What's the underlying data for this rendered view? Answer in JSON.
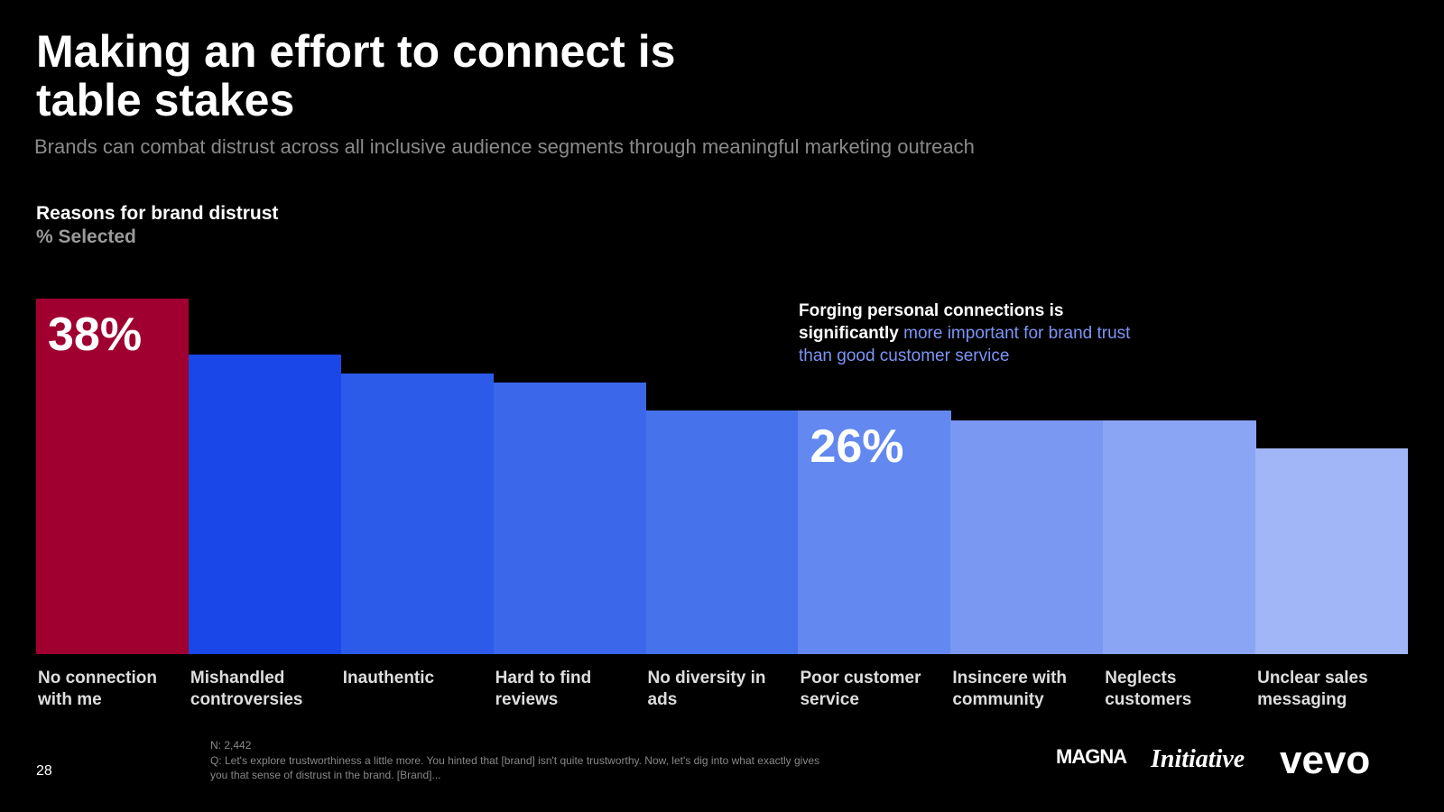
{
  "chart_data": {
    "type": "bar",
    "title": "Making an effort to connect is table stakes",
    "subtitle": "Brands can combat distrust across all inclusive audience segments through meaningful marketing outreach",
    "chart_title": "Reasons for brand distrust",
    "y_label": "% Selected",
    "annotation": {
      "lead": "Forging personal connections is significantly",
      "highlight": "more important for brand trust than good customer service"
    },
    "categories": [
      "No connection with me",
      "Mishandled controversies",
      "Inauthentic",
      "Hard to find reviews",
      "No diversity in ads",
      "Poor customer service",
      "Insincere with community",
      "Neglects customers",
      "Unclear sales messaging"
    ],
    "values": [
      38,
      32,
      30,
      29,
      26,
      26,
      25,
      25,
      22
    ],
    "value_labels": [
      "38%",
      null,
      null,
      null,
      null,
      "26%",
      null,
      null,
      null
    ],
    "colors": [
      "#a00030",
      "#1a47e8",
      "#2c5bea",
      "#3b67eb",
      "#4673ec",
      "#6388f0",
      "#7a98f2",
      "#8aa5f3",
      "#a1b6f6"
    ]
  },
  "footer": {
    "page": "28",
    "n": "N: 2,442",
    "question": "Q: Let's explore trustworthiness a little more. You hinted that [brand] isn't quite trustworthy. Now, let's dig into what exactly gives you that sense of distrust in the brand. [Brand]...",
    "logos": [
      "MAGNA",
      "Initiative",
      "vevo"
    ]
  }
}
